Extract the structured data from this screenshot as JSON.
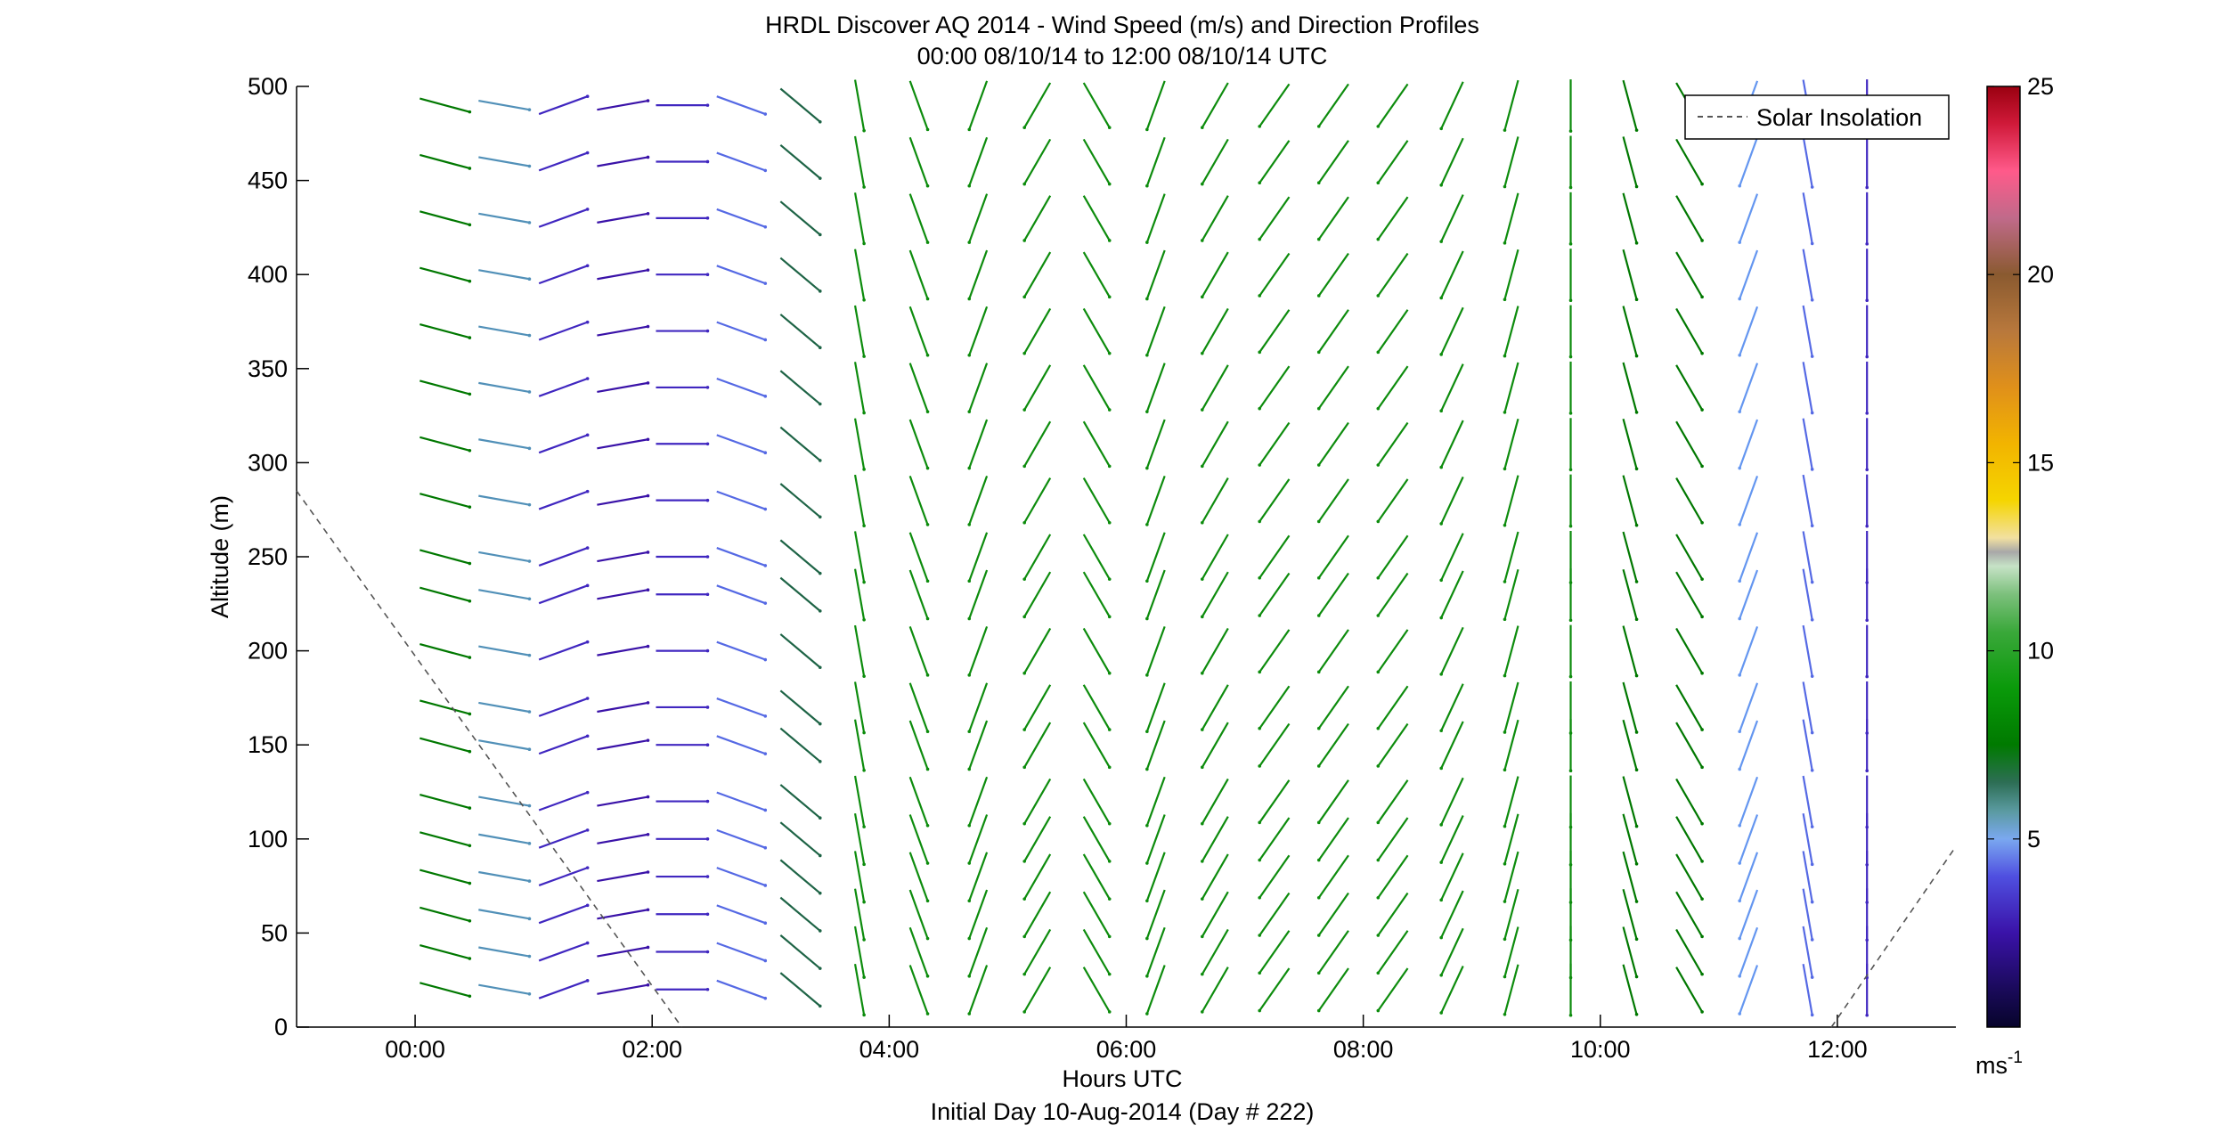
{
  "chart_data": {
    "type": "wind-barb-profile",
    "title": "HRDL Discover AQ 2014 - Wind Speed (m/s) and Direction Profiles",
    "subtitle": "00:00 08/10/14 to 12:00 08/10/14  UTC",
    "xlabel": "Hours UTC",
    "xlabel2": "Initial Day 10-Aug-2014 (Day # 222)",
    "ylabel": "Altitude (m)",
    "xlim": [
      -1.0,
      13.0
    ],
    "ylim": [
      0,
      500
    ],
    "x_ticks": [
      0,
      2,
      4,
      6,
      8,
      10,
      12
    ],
    "x_tick_labels": [
      "00:00",
      "02:00",
      "04:00",
      "06:00",
      "08:00",
      "10:00",
      "12:00"
    ],
    "y_ticks": [
      0,
      50,
      100,
      150,
      200,
      250,
      300,
      350,
      400,
      450,
      500
    ],
    "y_tick_labels": [
      "0",
      "50",
      "100",
      "150",
      "200",
      "250",
      "300",
      "350",
      "400",
      "450",
      "500"
    ],
    "colorbar": {
      "range": [
        0,
        25
      ],
      "ticks": [
        5,
        10,
        15,
        20,
        25
      ],
      "tick_labels": [
        "5",
        "10",
        "15",
        "20",
        "25"
      ],
      "unit_label": "ms",
      "unit_superscript": "-1"
    },
    "legend": {
      "position": "top-right",
      "entries": [
        "Solar Insolation"
      ]
    },
    "solar_insolation": {
      "style": "dashed",
      "color": "#555555",
      "segments": [
        {
          "x": [
            -1.0,
            2.25
          ],
          "y": [
            285,
            0
          ]
        },
        {
          "x": [
            11.95,
            13.0
          ],
          "y": [
            0,
            96
          ]
        }
      ]
    },
    "altitudes": [
      20,
      40,
      60,
      80,
      100,
      120,
      150,
      170,
      200,
      230,
      250,
      280,
      310,
      340,
      370,
      400,
      430,
      460,
      490
    ],
    "series": [
      {
        "time": 0.25,
        "speed": 7,
        "dir": 105
      },
      {
        "time": 0.75,
        "speed": 5,
        "dir": 100
      },
      {
        "time": 1.25,
        "speed": 3,
        "dir": 70
      },
      {
        "time": 1.75,
        "speed": 2.5,
        "dir": 80
      },
      {
        "time": 2.25,
        "speed": 3,
        "dir": 90
      },
      {
        "time": 2.75,
        "speed": 4,
        "dir": 110
      },
      {
        "time": 3.25,
        "speed": 6,
        "dir": 130
      },
      {
        "time": 3.75,
        "speed": 8,
        "dir": 170
      },
      {
        "time": 4.25,
        "speed": 8,
        "dir": 160
      },
      {
        "time": 4.75,
        "speed": 8,
        "dir": 200
      },
      {
        "time": 5.25,
        "speed": 8,
        "dir": 210
      },
      {
        "time": 5.75,
        "speed": 8,
        "dir": 150
      },
      {
        "time": 6.25,
        "speed": 8,
        "dir": 200
      },
      {
        "time": 6.75,
        "speed": 8,
        "dir": 210
      },
      {
        "time": 7.25,
        "speed": 8,
        "dir": 215
      },
      {
        "time": 7.75,
        "speed": 8,
        "dir": 215
      },
      {
        "time": 8.25,
        "speed": 8,
        "dir": 215
      },
      {
        "time": 8.75,
        "speed": 8,
        "dir": 205
      },
      {
        "time": 9.25,
        "speed": 8,
        "dir": 195
      },
      {
        "time": 9.75,
        "speed": 8,
        "dir": 180
      },
      {
        "time": 10.25,
        "speed": 7,
        "dir": 165
      },
      {
        "time": 10.75,
        "speed": 7,
        "dir": 150
      },
      {
        "time": 11.25,
        "speed": 4.5,
        "dir": 200
      },
      {
        "time": 11.75,
        "speed": 4,
        "dir": 170
      },
      {
        "time": 12.25,
        "speed": 3,
        "dir": 180
      }
    ]
  }
}
